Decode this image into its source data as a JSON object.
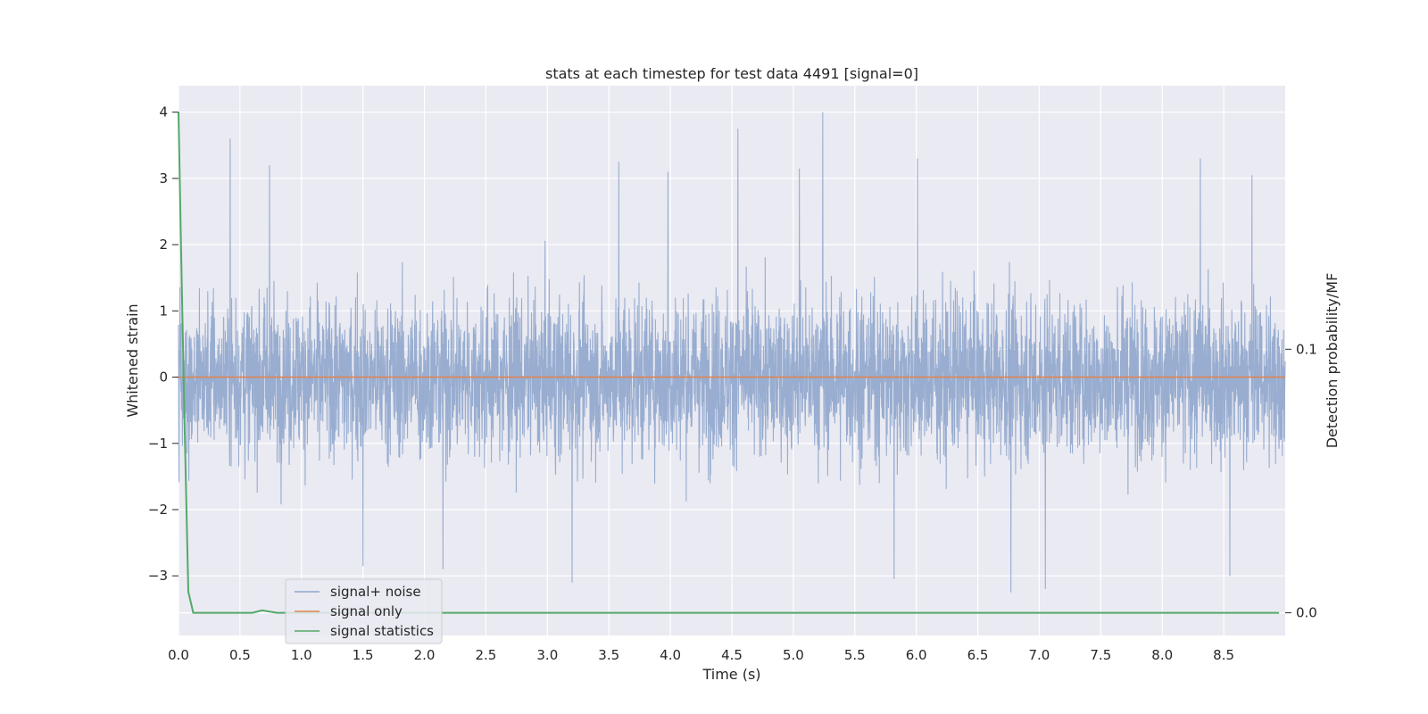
{
  "chart_data": {
    "type": "line",
    "title": "stats at each timestep for test data 4491 [signal=0]",
    "xlabel": "Time (s)",
    "ylabel": "Whitened strain",
    "y2label": "Detection probability/MF",
    "xlim": [
      0.0,
      9.0
    ],
    "ylim": [
      -3.9,
      4.4
    ],
    "y2lim": [
      -0.0086,
      0.2
    ],
    "xticks": [
      "0.0",
      "0.5",
      "1.0",
      "1.5",
      "2.0",
      "2.5",
      "3.0",
      "3.5",
      "4.0",
      "4.5",
      "5.0",
      "5.5",
      "6.0",
      "6.5",
      "7.0",
      "7.5",
      "8.0",
      "8.5"
    ],
    "yticks": [
      "4",
      "3",
      "2",
      "1",
      "0",
      "−1",
      "−2",
      "−3"
    ],
    "y2ticks": [
      "0.1",
      "0.0"
    ],
    "grid": true,
    "legend_position": "lower-left",
    "series": [
      {
        "name": "signal+ noise",
        "color": "#8fa6cc",
        "axis": "left",
        "description_values": {
          "typical_range": [
            -2.5,
            2.7
          ],
          "peaks": [
            [
              0.42,
              3.6
            ],
            [
              0.74,
              3.2
            ],
            [
              3.58,
              3.25
            ],
            [
              3.98,
              3.1
            ],
            [
              4.55,
              3.75
            ],
            [
              5.05,
              3.15
            ],
            [
              5.24,
              4.0
            ],
            [
              6.01,
              3.3
            ],
            [
              8.31,
              3.3
            ],
            [
              8.73,
              3.05
            ]
          ],
          "troughs": [
            [
              1.5,
              -2.85
            ],
            [
              2.15,
              -2.9
            ],
            [
              3.2,
              -3.1
            ],
            [
              5.82,
              -3.05
            ],
            [
              6.77,
              -3.25
            ],
            [
              7.05,
              -3.2
            ],
            [
              8.55,
              -3.0
            ]
          ]
        }
      },
      {
        "name": "signal only",
        "color": "#dd8452",
        "axis": "left",
        "x": [
          0.0,
          9.0
        ],
        "values": [
          0.0,
          0.0
        ]
      },
      {
        "name": "signal statistics",
        "color": "#55a868",
        "axis": "right",
        "x": [
          0.0,
          0.02,
          0.05,
          0.08,
          0.12,
          0.3,
          0.6,
          0.68,
          0.8,
          1.0,
          3.0,
          6.0,
          8.95
        ],
        "values": [
          0.19,
          0.14,
          0.07,
          0.008,
          0.0,
          0.0,
          0.0,
          0.0009,
          0.0,
          0.0,
          0.0,
          0.0,
          0.0
        ]
      }
    ],
    "colors": {
      "plot_background": "#eaeaf2",
      "grid": "#ffffff",
      "text": "#262626"
    }
  }
}
